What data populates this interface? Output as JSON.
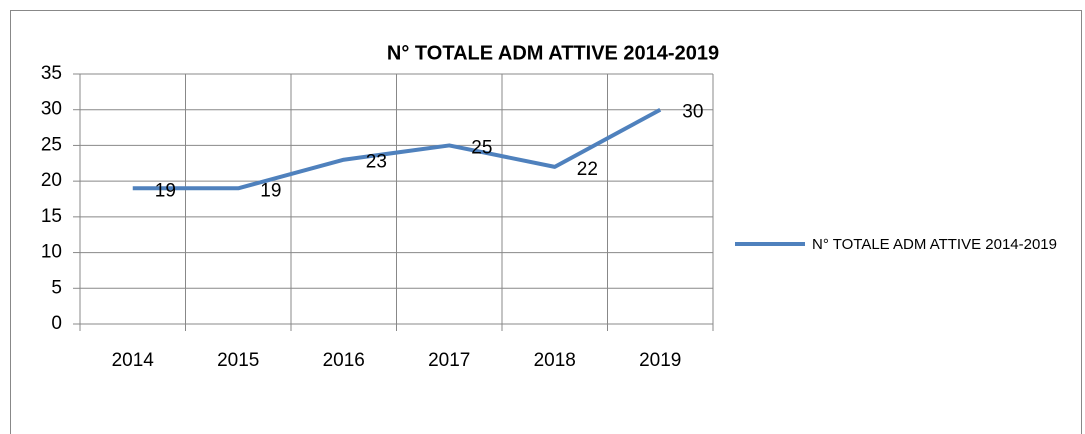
{
  "chart_data": {
    "type": "line",
    "title": "N° TOTALE ADM ATTIVE 2014-2019",
    "categories": [
      "2014",
      "2015",
      "2016",
      "2017",
      "2018",
      "2019"
    ],
    "series": [
      {
        "name": "N° TOTALE ADM ATTIVE 2014-2019",
        "color": "#4f81bd",
        "values": [
          19,
          19,
          23,
          25,
          22,
          30
        ]
      }
    ],
    "ylim": [
      0,
      35
    ],
    "yticks": [
      0,
      5,
      10,
      15,
      20,
      25,
      30,
      35
    ],
    "grid": true,
    "legend": "right"
  }
}
